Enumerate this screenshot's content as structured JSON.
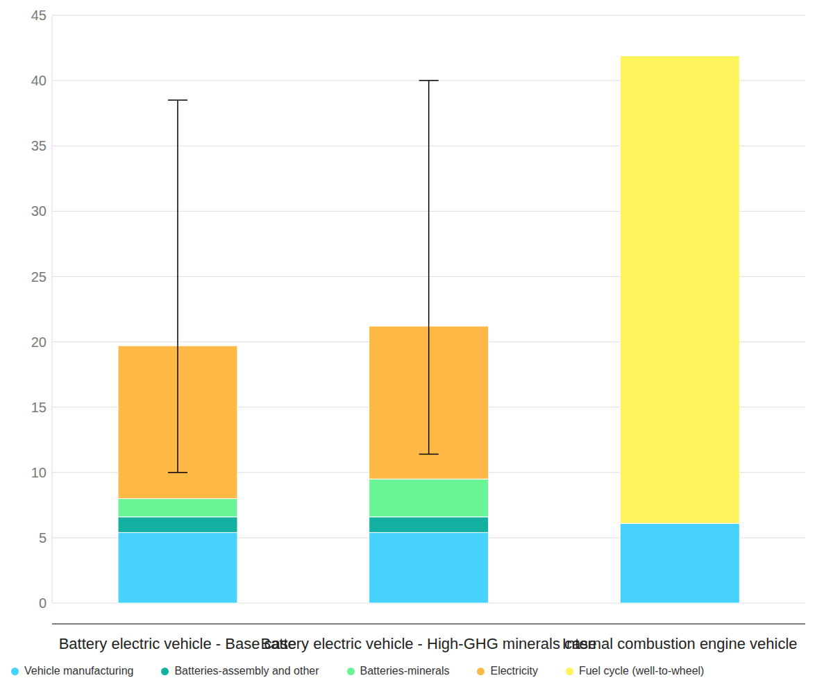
{
  "chart_data": {
    "type": "bar",
    "stacked": true,
    "categories": [
      "Battery electric vehicle - Base case",
      "Battery electric vehicle - High-GHG minerals case",
      "Internal combustion engine vehicle"
    ],
    "series": [
      {
        "name": "Vehicle manufacturing",
        "color": "#47d1fe",
        "values": [
          5.4,
          5.4,
          6.1
        ]
      },
      {
        "name": "Batteries-assembly and other",
        "color": "#11b0a0",
        "values": [
          1.2,
          1.2,
          null
        ]
      },
      {
        "name": "Batteries-minerals",
        "color": "#69f595",
        "values": [
          1.4,
          2.9,
          null
        ]
      },
      {
        "name": "Electricity",
        "color": "#fdb845",
        "values": [
          11.7,
          11.7,
          null
        ]
      },
      {
        "name": "Fuel cycle (well-to-wheel)",
        "color": "#fff35c",
        "values": [
          null,
          null,
          35.8
        ]
      }
    ],
    "error_bars": {
      "low": [
        10.0,
        11.4,
        null
      ],
      "high": [
        38.5,
        40.0,
        null
      ]
    },
    "ylim": [
      0,
      45
    ],
    "yticks": [
      0,
      5,
      10,
      15,
      20,
      25,
      30,
      35,
      40,
      45
    ],
    "grid": true,
    "legend": "bottom"
  }
}
